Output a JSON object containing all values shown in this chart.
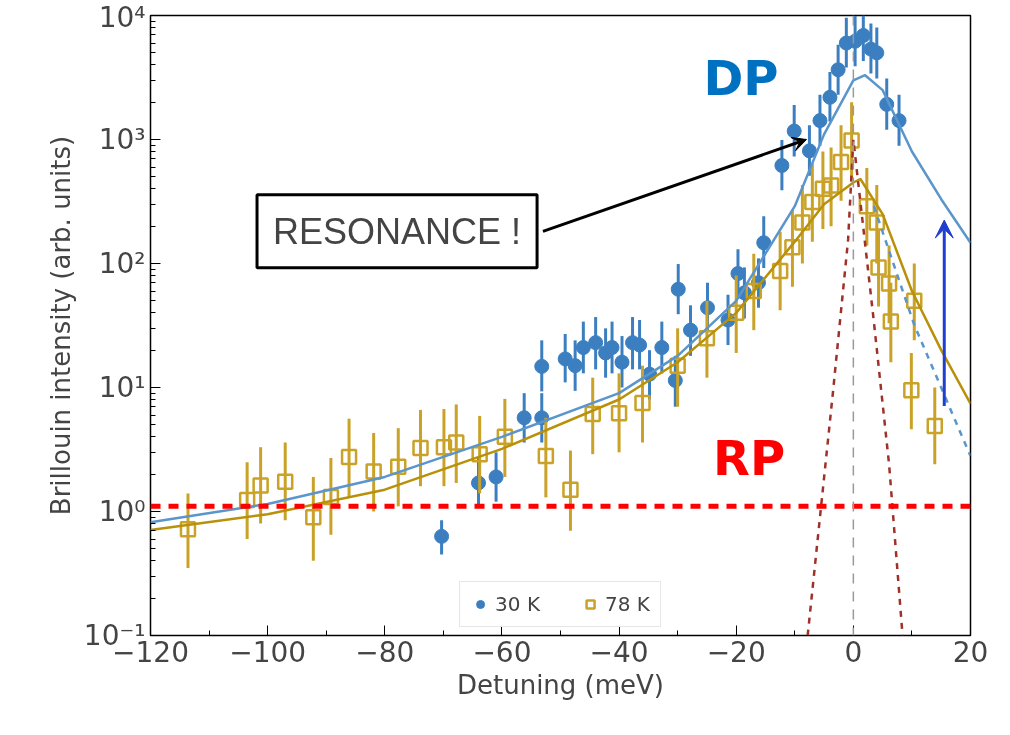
{
  "chart_data": {
    "type": "scatter",
    "xlabel": "Detuning (meV)",
    "ylabel": "Brillouin intensity (arb. units)",
    "xlim": [
      -120,
      20
    ],
    "ylim": [
      0.1,
      10000
    ],
    "log": "y",
    "grid": false,
    "legend": "bottom",
    "xticks": [
      {
        "value": -120,
        "label": "−120"
      },
      {
        "value": -100,
        "label": "−100"
      },
      {
        "value": -80,
        "label": "−80"
      },
      {
        "value": -60,
        "label": "−60"
      },
      {
        "value": -40,
        "label": "−40"
      },
      {
        "value": -20,
        "label": "−20"
      },
      0,
      20
    ],
    "yticks": [
      {
        "value": 0.1,
        "label": "10⁻¹"
      },
      {
        "value": 1,
        "label": "10⁰"
      },
      {
        "value": 10,
        "label": "10¹"
      },
      {
        "value": 100,
        "label": "10²"
      },
      {
        "value": 1000,
        "label": "10³"
      },
      {
        "value": 10000,
        "label": "10⁴"
      }
    ],
    "series": [
      {
        "name": "30 K",
        "marker": "circle",
        "color": "#3b7fc0",
        "x": [
          -70.3,
          -64,
          -61,
          -56.2,
          -53.2,
          -53.2,
          -49.2,
          -47.5,
          -46.1,
          -44,
          -42.3,
          -41.2,
          -39.5,
          -37.7,
          -36.5,
          -34.8,
          -32.7,
          -30.4,
          -29.9,
          -27.8,
          -24.9,
          -21.4,
          -19.7,
          -18.6,
          -16.2,
          -15.3,
          -12.2,
          -10.1,
          -7.5,
          -5.7,
          -4,
          -2.6,
          -1.2,
          0.3,
          1.7,
          3,
          4,
          5.7,
          7.8
        ],
        "values": [
          0.63,
          1.7,
          1.9,
          5.7,
          5.7,
          14.8,
          17,
          15,
          21,
          23,
          19,
          21,
          16,
          23,
          22,
          12.8,
          21,
          11.4,
          62,
          29,
          44,
          35,
          83,
          58,
          70,
          147,
          617,
          1170,
          810,
          1420,
          2190,
          3650,
          6000,
          6200,
          6900,
          5360,
          5000,
          1920,
          1420
        ],
        "errors": [
          [
            0.45,
            0.85
          ],
          [
            1.1,
            2.7
          ],
          [
            1.2,
            3
          ],
          [
            3.6,
            9
          ],
          [
            3.6,
            9
          ],
          [
            9.3,
            24
          ],
          [
            11,
            27
          ],
          [
            9.4,
            24
          ],
          [
            13,
            34
          ],
          [
            14,
            37
          ],
          [
            12,
            30
          ],
          [
            13,
            34
          ],
          [
            10,
            26
          ],
          [
            14,
            37
          ],
          [
            14,
            35
          ],
          [
            8,
            20
          ],
          [
            13,
            34
          ],
          [
            7,
            18
          ],
          [
            39,
            99
          ],
          [
            18,
            46
          ],
          [
            28,
            70
          ],
          [
            22,
            56
          ],
          [
            52,
            130
          ],
          [
            36,
            93
          ],
          [
            44,
            110
          ],
          [
            92,
            240
          ],
          [
            390,
            990
          ],
          [
            730,
            1900
          ],
          [
            510,
            1300
          ],
          [
            890,
            2300
          ],
          [
            1400,
            3500
          ],
          [
            2300,
            5800
          ],
          [
            3800,
            9600
          ],
          [
            3900,
            9900
          ],
          [
            4300,
            9990
          ],
          [
            3400,
            8600
          ],
          [
            3100,
            8000
          ],
          [
            1200,
            3100
          ],
          [
            890,
            2300
          ]
        ]
      },
      {
        "name": "78 K",
        "marker": "square",
        "color": "#c9a227",
        "x": [
          -113.6,
          -103.5,
          -101.2,
          -97,
          -92.2,
          -89.2,
          -86.1,
          -81.9,
          -77.7,
          -73.9,
          -69.9,
          -67.8,
          -63.8,
          -59.5,
          -52.5,
          -48.3,
          -44.5,
          -40,
          -36,
          -30,
          -25,
          -20,
          -17,
          -12.5,
          -10.4,
          -8.7,
          -7,
          -5.2,
          -3.8,
          -2.1,
          -0.3,
          2.3,
          4.0,
          4.3,
          6.1,
          6.4,
          10.4,
          9.9,
          13.9
        ],
        "values": [
          0.72,
          1.24,
          1.62,
          1.74,
          0.9,
          1.31,
          2.75,
          2.1,
          2.3,
          3.25,
          3.3,
          3.6,
          2.9,
          4.0,
          2.8,
          1.5,
          6.1,
          6.2,
          7.5,
          15,
          25,
          40,
          60,
          87,
          135,
          214,
          314,
          400,
          425,
          660,
          980,
          290,
          214,
          93,
          69,
          34,
          50,
          9.5,
          4.9
        ],
        "errors": [
          [
            0.35,
            1.4
          ],
          [
            0.6,
            2.5
          ],
          [
            0.8,
            3.3
          ],
          [
            0.85,
            3.6
          ],
          [
            0.4,
            1.9
          ],
          [
            0.65,
            2.7
          ],
          [
            1.3,
            5.6
          ],
          [
            1.0,
            4.3
          ],
          [
            1.1,
            4.7
          ],
          [
            1.6,
            6.6
          ],
          [
            1.6,
            6.7
          ],
          [
            1.7,
            7.3
          ],
          [
            1.4,
            5.9
          ],
          [
            1.9,
            8.1
          ],
          [
            1.3,
            5.7
          ],
          [
            0.7,
            3.1
          ],
          [
            2.9,
            12
          ],
          [
            3,
            13
          ],
          [
            3.6,
            15
          ],
          [
            7,
            30
          ],
          [
            12,
            50
          ],
          [
            19,
            80
          ],
          [
            29,
            120
          ],
          [
            42,
            180
          ],
          [
            65,
            270
          ],
          [
            100,
            430
          ],
          [
            150,
            640
          ],
          [
            190,
            800
          ],
          [
            200,
            860
          ],
          [
            320,
            1300
          ],
          [
            470,
            2000
          ],
          [
            140,
            590
          ],
          [
            100,
            430
          ],
          [
            45,
            190
          ],
          [
            33,
            140
          ],
          [
            16,
            70
          ],
          [
            24,
            100
          ],
          [
            4.6,
            19
          ],
          [
            2.4,
            10
          ]
        ]
      },
      {
        "type": "line",
        "color": "#5a95cc",
        "line_style": "solid",
        "x": [
          -120,
          -100,
          -80,
          -60,
          -40,
          -30,
          -20,
          -10,
          -5,
          0,
          2,
          5,
          10,
          15,
          20
        ],
        "values": [
          0.82,
          1.15,
          1.9,
          4,
          9,
          18,
          50,
          290,
          1100,
          3000,
          3300,
          2500,
          800,
          330,
          147
        ]
      },
      {
        "type": "line",
        "color": "#b8900a",
        "line_style": "solid",
        "x": [
          -120,
          -100,
          -80,
          -60,
          -40,
          -30,
          -20,
          -10,
          -5,
          0,
          1.2,
          5,
          10,
          15,
          20
        ],
        "values": [
          0.71,
          0.95,
          1.5,
          3.2,
          8,
          16,
          40,
          150,
          300,
          450,
          480,
          250,
          60,
          20,
          7.4
        ]
      },
      {
        "type": "line",
        "color": "#5a95cc",
        "line_style": "dashed",
        "x": [
          3.5,
          10.4,
          20
        ],
        "values": [
          290,
          32,
          2.8
        ]
      },
      {
        "type": "line",
        "color": "#a0302a",
        "line_style": "dashed",
        "x": [
          -7.8,
          -3.5,
          -0.9,
          0,
          3.5,
          6.1,
          8.4
        ],
        "values": [
          0.1,
          9,
          155,
          1000,
          34,
          2.4,
          0.1
        ]
      }
    ],
    "ref_lines": [
      {
        "axis": "y",
        "value": 1.1,
        "label": "RP",
        "color": "#ff0000",
        "line_style": "dashed"
      },
      {
        "axis": "x",
        "value": 0,
        "label": null,
        "color": "#999999",
        "line_style": "dashed"
      }
    ],
    "annotations": [
      {
        "text": "RESONANCE !",
        "x": -8,
        "y": 1000
      },
      "DP"
    ]
  }
}
